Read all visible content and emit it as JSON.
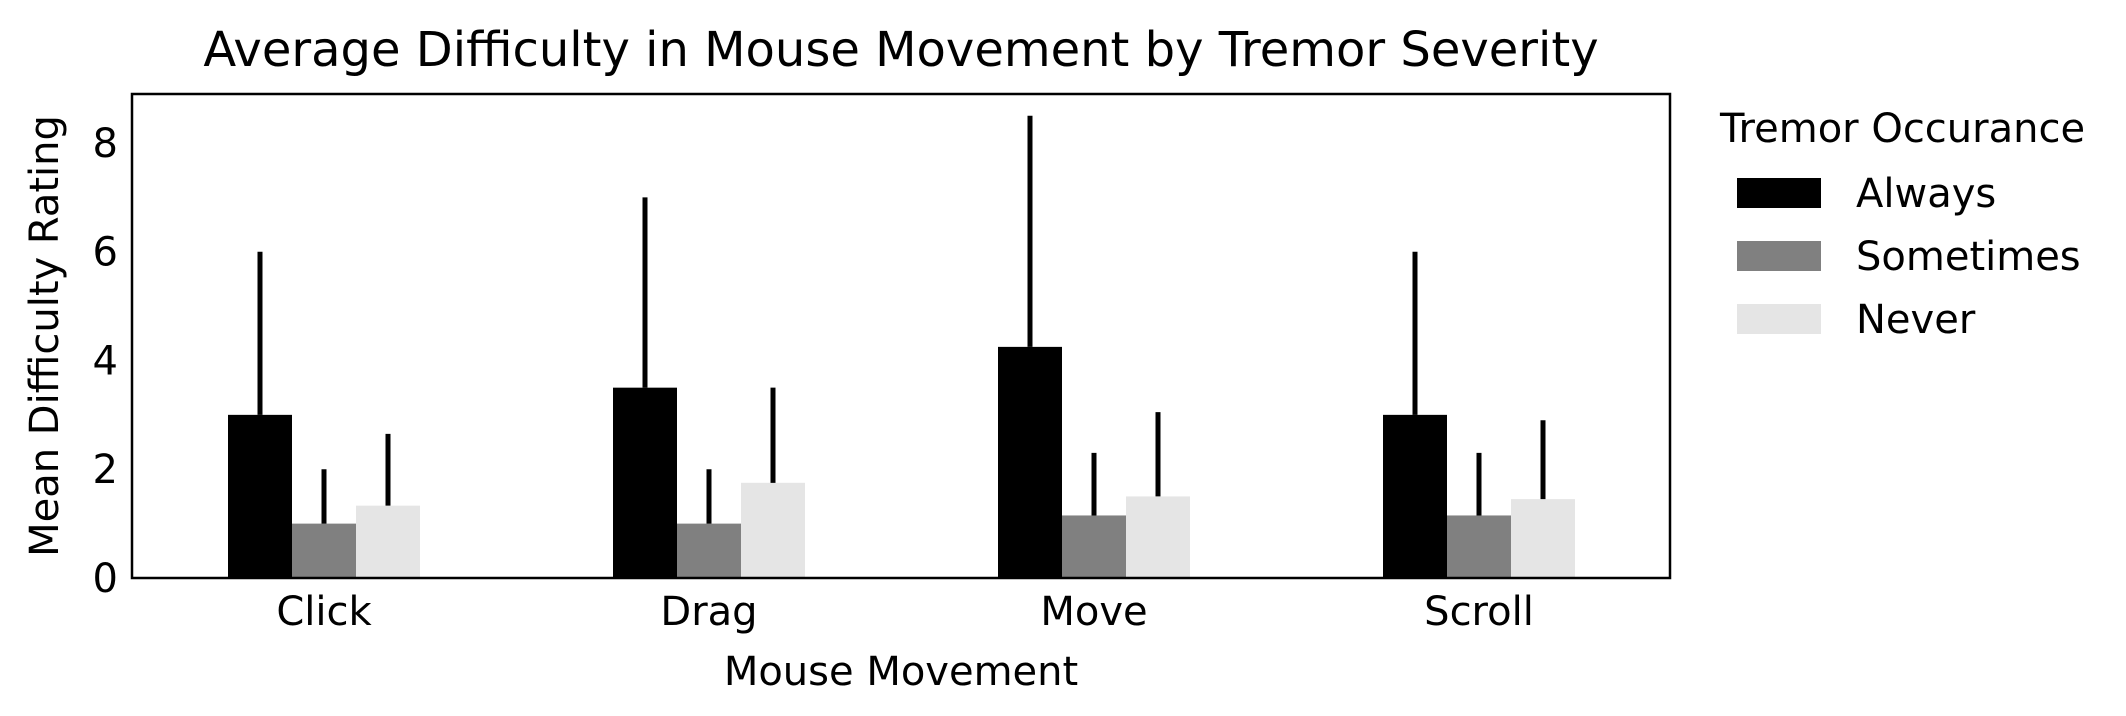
{
  "chart_data": {
    "type": "bar",
    "title": "Average Difficulty in Mouse Movement by Tremor Severity",
    "xlabel": "Mouse Movement",
    "ylabel": "Mean Difficulty Rating",
    "categories": [
      "Click",
      "Drag",
      "Move",
      "Scroll"
    ],
    "ylim": [
      0,
      8.9
    ],
    "yticks": [
      0,
      2,
      4,
      6,
      8
    ],
    "ytick_labels": [
      "0",
      "2",
      "4",
      "6",
      "8"
    ],
    "grid": false,
    "legend": {
      "title": "Tremor Occurance",
      "placement": "outside-right"
    },
    "series": [
      {
        "name": "Always",
        "color": "#000000",
        "values": [
          3.0,
          3.5,
          4.25,
          3.0
        ],
        "error_upper": [
          6.0,
          7.0,
          8.5,
          6.0
        ]
      },
      {
        "name": "Sometimes",
        "color": "#808080",
        "values": [
          1.0,
          1.0,
          1.15,
          1.15
        ],
        "error_upper": [
          2.0,
          2.0,
          2.3,
          2.3
        ]
      },
      {
        "name": "Never",
        "color": "#e5e5e5",
        "values": [
          1.33,
          1.75,
          1.5,
          1.45
        ],
        "error_upper": [
          2.65,
          3.5,
          3.05,
          2.9
        ]
      }
    ]
  }
}
